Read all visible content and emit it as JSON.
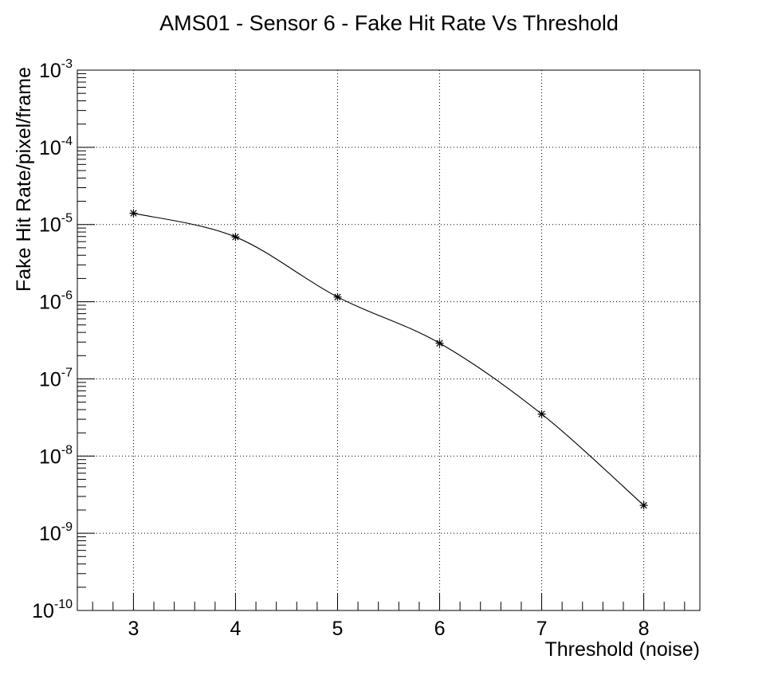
{
  "chart_data": {
    "type": "line",
    "title": "AMS01 - Sensor 6 - Fake Hit Rate Vs Threshold",
    "xlabel": "Threshold (noise)",
    "ylabel": "Fake Hit Rate/pixel/frame",
    "x": [
      3,
      4,
      5,
      6,
      7,
      8
    ],
    "series": [
      {
        "values": [
          1.4e-05,
          6.9e-06,
          1.15e-06,
          2.9e-07,
          3.5e-08,
          2.3e-09
        ]
      }
    ],
    "xlim": [
      2.45,
      8.55
    ],
    "ylim": [
      1e-10,
      0.001
    ],
    "yscale": "log",
    "x_ticks": [
      "3",
      "4",
      "5",
      "6",
      "7",
      "8"
    ],
    "y_ticks": [
      {
        "base": "10",
        "exp": "-10"
      },
      {
        "base": "10",
        "exp": "-9"
      },
      {
        "base": "10",
        "exp": "-8"
      },
      {
        "base": "10",
        "exp": "-7"
      },
      {
        "base": "10",
        "exp": "-6"
      },
      {
        "base": "10",
        "exp": "-5"
      },
      {
        "base": "10",
        "exp": "-4"
      },
      {
        "base": "10",
        "exp": "-3"
      }
    ],
    "grid": true,
    "marker": "asterisk",
    "line_style": "smooth",
    "color": "#000000"
  }
}
